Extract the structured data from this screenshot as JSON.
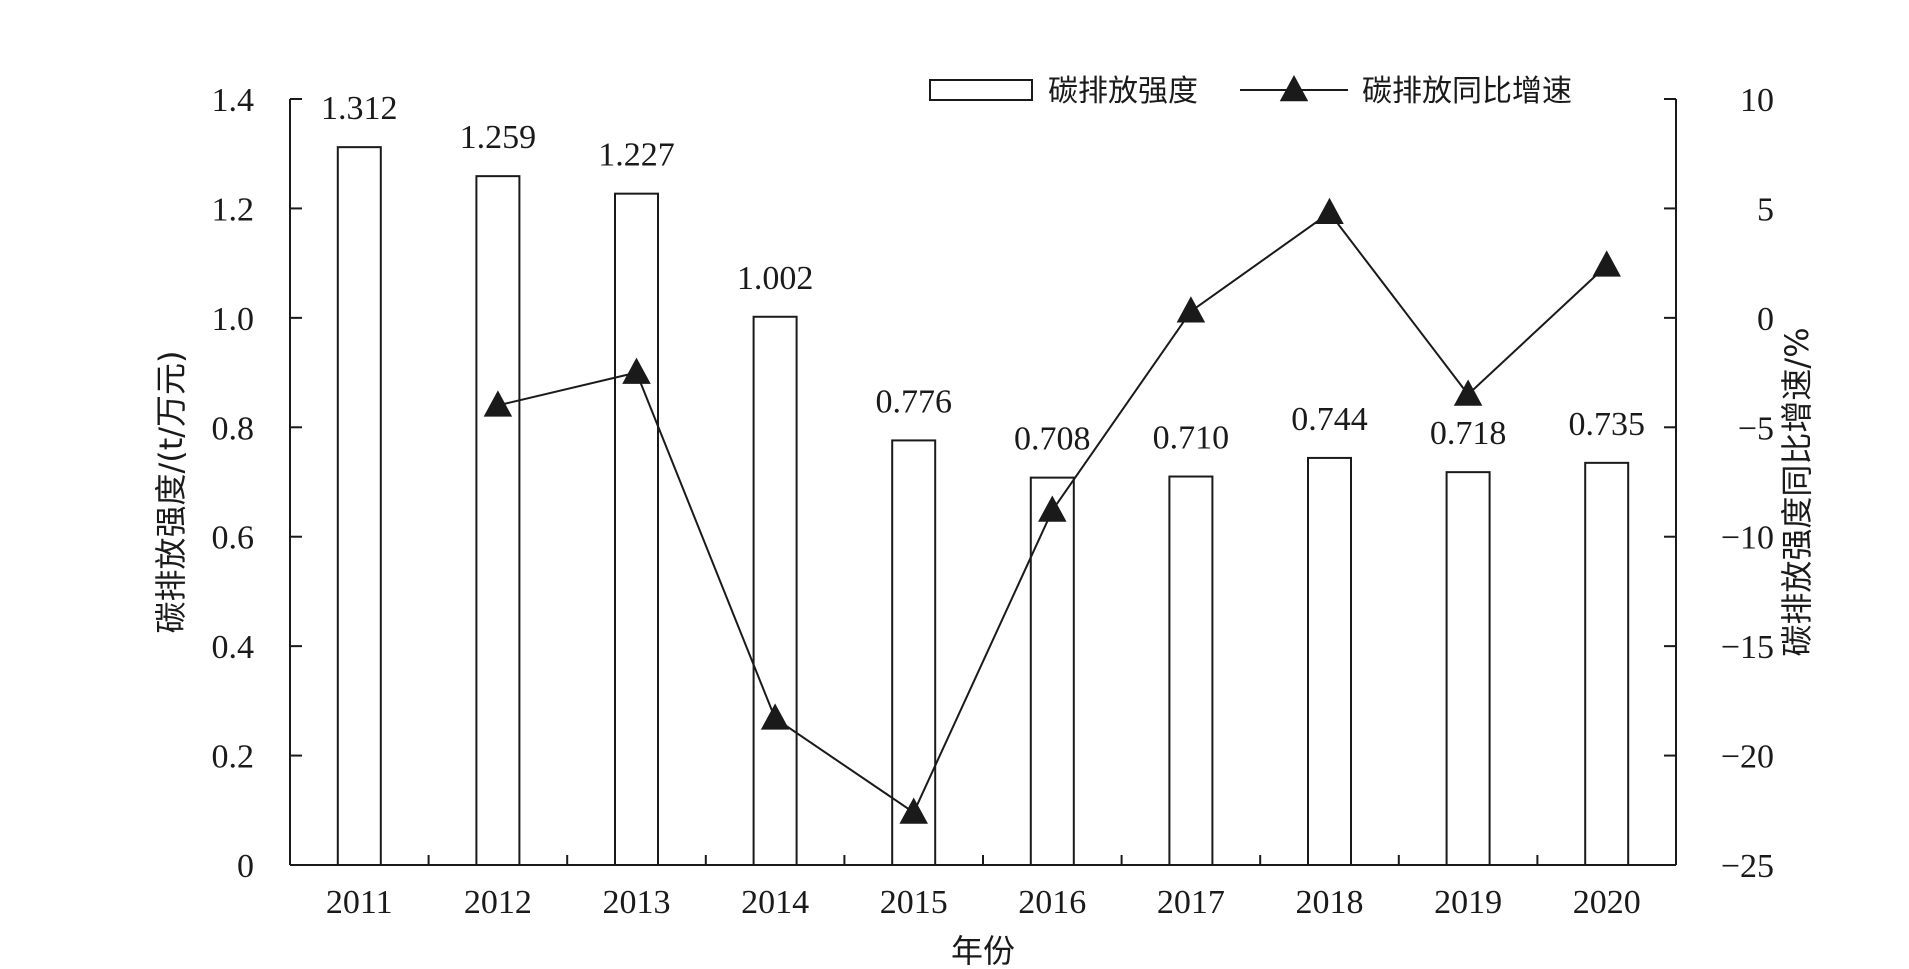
{
  "chart_data": {
    "type": "bar+line",
    "categories": [
      "2011",
      "2012",
      "2013",
      "2014",
      "2015",
      "2016",
      "2017",
      "2018",
      "2019",
      "2020"
    ],
    "xlabel": "年份",
    "y_left_label": "碳排放强度/(t/万元)",
    "y_right_label": "碳排放强度同比增速/%",
    "y_left_lim": [
      0,
      1.4
    ],
    "y_left_ticks": [
      "0",
      "0.2",
      "0.4",
      "0.6",
      "0.8",
      "1.0",
      "1.2",
      "1.4"
    ],
    "y_right_lim": [
      -25,
      10
    ],
    "y_right_ticks": [
      "−25",
      "−20",
      "−15",
      "−10",
      "−5",
      "0",
      "5",
      "10"
    ],
    "series": [
      {
        "name": "碳排放强度",
        "kind": "bar",
        "axis": "left",
        "values": [
          1.312,
          1.259,
          1.227,
          1.002,
          0.776,
          0.708,
          0.71,
          0.744,
          0.718,
          0.735
        ],
        "labels": [
          "1.312",
          "1.259",
          "1.227",
          "1.002",
          "0.776",
          "0.708",
          "0.710",
          "0.744",
          "0.718",
          "0.735"
        ]
      },
      {
        "name": "碳排放同比增速",
        "kind": "line",
        "marker": "triangle",
        "axis": "right",
        "values": [
          null,
          -4.0,
          -2.5,
          -18.3,
          -22.6,
          -8.8,
          0.3,
          4.8,
          -3.5,
          2.4
        ]
      }
    ],
    "legend_position": "top-right",
    "grid": false,
    "colors": {
      "bar_fill": "#ffffff",
      "bar_stroke": "#1a1a1a",
      "line": "#1a1a1a",
      "marker": "#1a1a1a"
    }
  }
}
